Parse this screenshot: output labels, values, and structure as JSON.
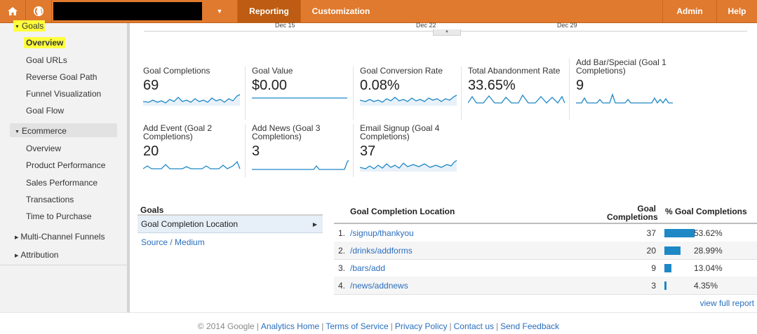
{
  "topbar": {
    "reporting_label": "Reporting",
    "customization_label": "Customization",
    "admin_label": "Admin",
    "help_label": "Help",
    "accent_color": "#e07a2e",
    "active_tab_color": "#bd5c12"
  },
  "sidebar": {
    "goals_label": "Goals",
    "goals_items": [
      "Overview",
      "Goal URLs",
      "Reverse Goal Path",
      "Funnel Visualization",
      "Goal Flow"
    ],
    "ecommerce_label": "Ecommerce",
    "ecommerce_items": [
      "Overview",
      "Product Performance",
      "Sales Performance",
      "Transactions",
      "Time to Purchase"
    ],
    "mcf_label": "Multi-Channel Funnels",
    "attribution_label": "Attribution",
    "highlight_color": "#ffff3d"
  },
  "timeline": {
    "labels": [
      "Dec 15",
      "Dec 22",
      "Dec 29"
    ]
  },
  "metrics": [
    {
      "label": "Goal Completions",
      "value": "69"
    },
    {
      "label": "Goal Value",
      "value": "$0.00"
    },
    {
      "label": "Goal Conversion Rate",
      "value": "0.08%"
    },
    {
      "label": "Total Abandonment Rate",
      "value": "33.65%"
    },
    {
      "label": "Add Bar/Special (Goal 1 Completions)",
      "value": "9"
    },
    {
      "label": "Add Event (Goal 2 Completions)",
      "value": "20"
    },
    {
      "label": "Add News (Goal 3 Completions)",
      "value": "3"
    },
    {
      "label": "Email Signup (Goal 4 Completions)",
      "value": "37"
    }
  ],
  "goals_panel": {
    "header": "Goals",
    "selected": "Goal Completion Location",
    "other": "Source / Medium"
  },
  "location_table": {
    "col_location": "Goal Completion Location",
    "col_completions_line1": "Goal",
    "col_completions_line2": "Completions",
    "col_pct": "% Goal Completions",
    "rows": [
      {
        "num": "1.",
        "location": "/signup/thankyou",
        "completions": "37",
        "pct": "53.62%",
        "share": 0.5362
      },
      {
        "num": "2.",
        "location": "/drinks/addforms",
        "completions": "20",
        "pct": "28.99%",
        "share": 0.2899
      },
      {
        "num": "3.",
        "location": "/bars/add",
        "completions": "9",
        "pct": "13.04%",
        "share": 0.1304
      },
      {
        "num": "4.",
        "location": "/news/addnews",
        "completions": "3",
        "pct": "4.35%",
        "share": 0.0435
      }
    ],
    "view_full": "view full report",
    "bar_color": "#1e88c7"
  },
  "footer": {
    "copyright": "© 2014 Google",
    "links": [
      "Analytics Home",
      "Terms of Service",
      "Privacy Policy",
      "Contact us",
      "Send Feedback"
    ]
  }
}
